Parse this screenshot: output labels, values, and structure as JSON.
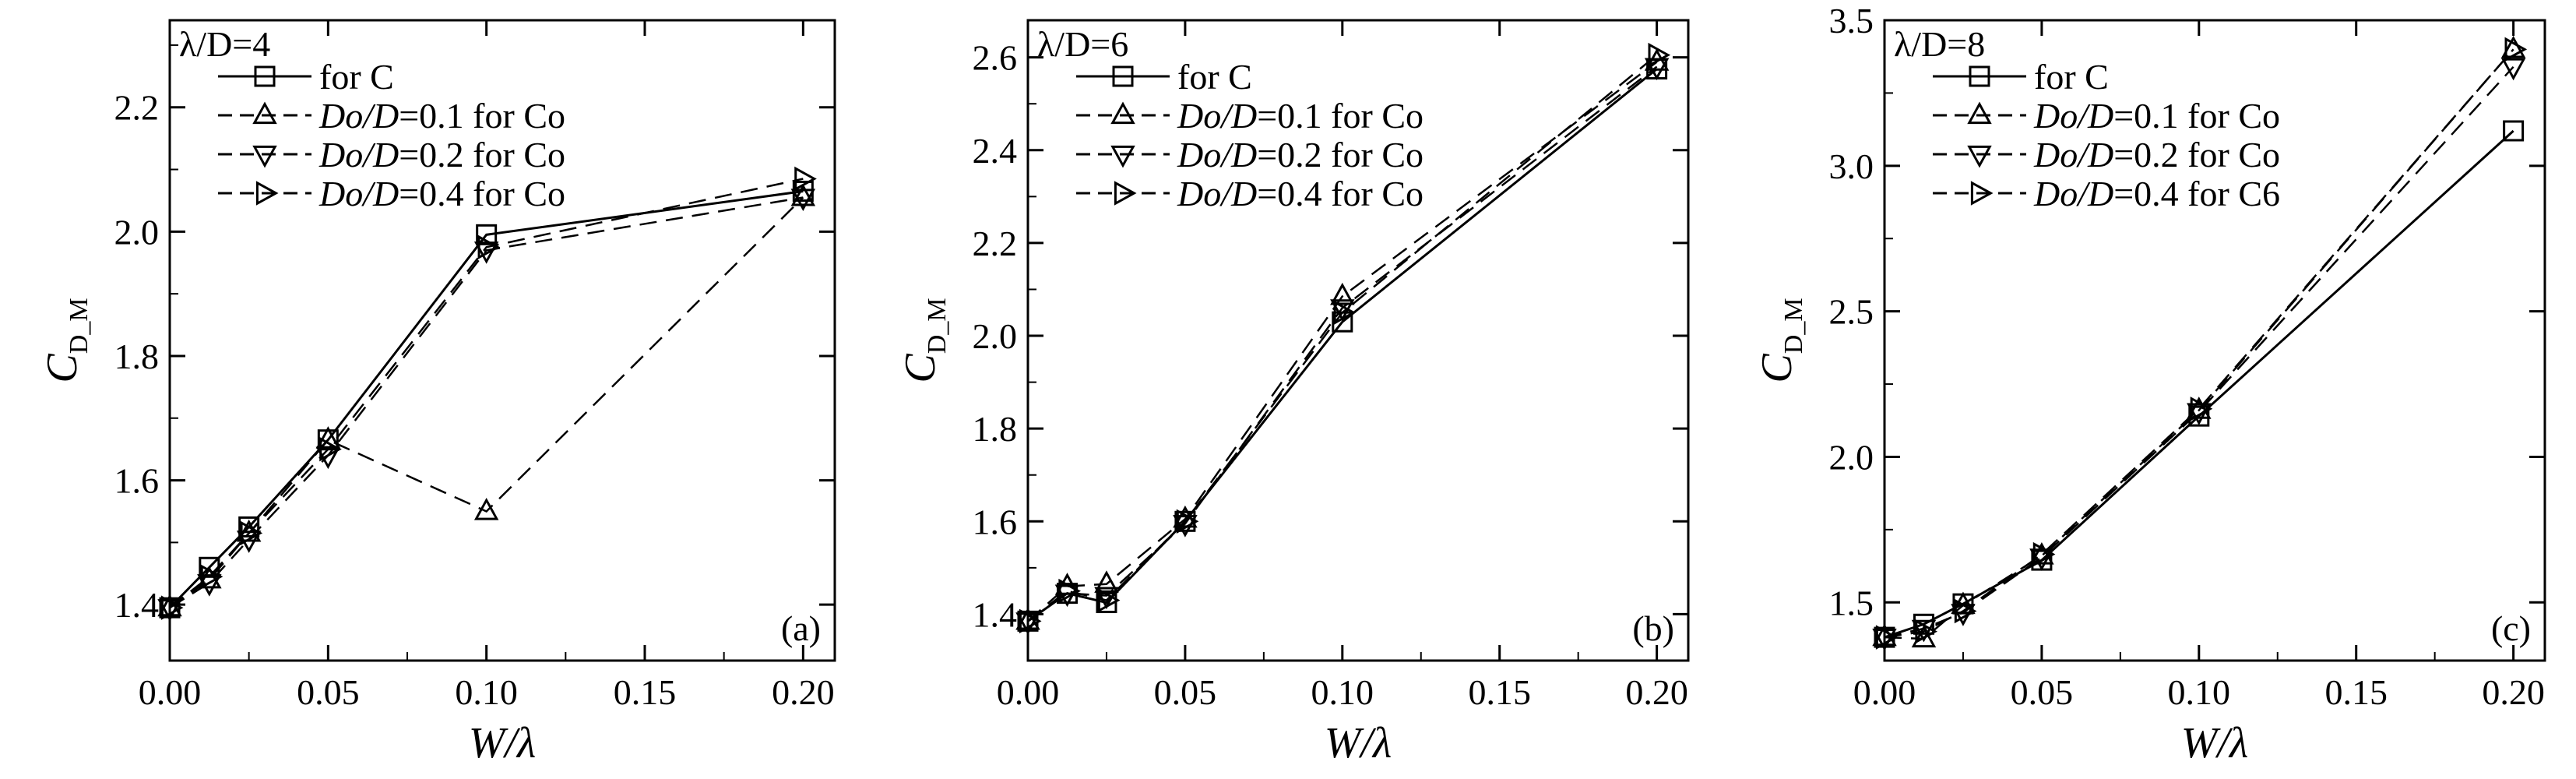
{
  "figure": {
    "x_axis_label": "W/λ",
    "y_axis_label_main": "C",
    "y_axis_label_sub": "D_M",
    "series_styles": [
      {
        "marker": "square",
        "dash": "solid"
      },
      {
        "marker": "triangle-up",
        "dash": "dashed"
      },
      {
        "marker": "triangle-down",
        "dash": "dashed"
      },
      {
        "marker": "triangle-right",
        "dash": "dashed"
      }
    ]
  },
  "chart_data": [
    {
      "type": "line",
      "panel_label": "(a)",
      "legend_title": "λ/D=4",
      "legend_placement": "top-left",
      "grid": false,
      "xlim": [
        0,
        0.21
      ],
      "ylim": [
        1.31,
        2.34
      ],
      "x_ticks": [
        0.0,
        0.05,
        0.1,
        0.15,
        0.2
      ],
      "x_tick_labels": [
        "0.00",
        "0.05",
        "0.10",
        "0.15",
        "0.20"
      ],
      "y_ticks": [
        1.4,
        1.6,
        1.8,
        2.0,
        2.2
      ],
      "y_tick_labels": [
        "1.4",
        "1.6",
        "1.8",
        "2.0",
        "2.2"
      ],
      "x": [
        0,
        0.0125,
        0.025,
        0.05,
        0.1,
        0.2
      ],
      "series": [
        {
          "legend_italic": "",
          "legend_plain": "for C",
          "values": [
            1.395,
            1.46,
            1.525,
            1.665,
            1.995,
            2.065
          ]
        },
        {
          "legend_italic": "Do/D",
          "legend_plain": "=0.1 for Co",
          "values": [
            1.395,
            1.44,
            1.515,
            1.665,
            1.55,
            2.055
          ]
        },
        {
          "legend_italic": "Do/D",
          "legend_plain": "=0.2 for Co",
          "values": [
            1.395,
            1.435,
            1.505,
            1.64,
            1.97,
            2.055
          ]
        },
        {
          "legend_italic": "Do/D",
          "legend_plain": "=0.4 for Co",
          "values": [
            1.395,
            1.445,
            1.515,
            1.65,
            1.975,
            2.085
          ]
        }
      ]
    },
    {
      "type": "line",
      "panel_label": "(b)",
      "legend_title": "λ/D=6",
      "legend_placement": "top-left",
      "grid": false,
      "xlim": [
        0,
        0.21
      ],
      "ylim": [
        1.3,
        2.68
      ],
      "x_ticks": [
        0.0,
        0.05,
        0.1,
        0.15,
        0.2
      ],
      "x_tick_labels": [
        "0.00",
        "0.05",
        "0.10",
        "0.15",
        "0.20"
      ],
      "y_ticks": [
        1.4,
        1.6,
        1.8,
        2.0,
        2.2,
        2.4,
        2.6
      ],
      "y_tick_labels": [
        "1.4",
        "1.6",
        "1.8",
        "2.0",
        "2.2",
        "2.4",
        "2.6"
      ],
      "x": [
        0,
        0.0125,
        0.025,
        0.05,
        0.1,
        0.2
      ],
      "series": [
        {
          "legend_italic": "",
          "legend_plain": "for C",
          "values": [
            1.385,
            1.445,
            1.425,
            1.6,
            2.03,
            2.575
          ]
        },
        {
          "legend_italic": "Do/D",
          "legend_plain": "=0.1 for Co",
          "values": [
            1.385,
            1.46,
            1.465,
            1.605,
            2.085,
            2.59
          ]
        },
        {
          "legend_italic": "Do/D",
          "legend_plain": "=0.2 for Co",
          "values": [
            1.385,
            1.445,
            1.44,
            1.595,
            2.06,
            2.58
          ]
        },
        {
          "legend_italic": "Do/D",
          "legend_plain": "=0.4 for Co",
          "values": [
            1.385,
            1.45,
            1.43,
            1.6,
            2.05,
            2.605
          ]
        }
      ]
    },
    {
      "type": "line",
      "panel_label": "(c)",
      "legend_title": "λ/D=8",
      "legend_placement": "top-left",
      "grid": false,
      "xlim": [
        0,
        0.21
      ],
      "ylim": [
        1.3,
        3.5
      ],
      "x_ticks": [
        0.0,
        0.05,
        0.1,
        0.15,
        0.2
      ],
      "x_tick_labels": [
        "0.00",
        "0.05",
        "0.10",
        "0.15",
        "0.20"
      ],
      "y_ticks": [
        1.5,
        2.0,
        2.5,
        3.0,
        3.5
      ],
      "y_tick_labels": [
        "1.5",
        "2.0",
        "2.5",
        "3.0",
        "3.5"
      ],
      "x": [
        0,
        0.0125,
        0.025,
        0.05,
        0.1,
        0.2
      ],
      "series": [
        {
          "legend_italic": "",
          "legend_plain": "for C",
          "values": [
            1.38,
            1.425,
            1.495,
            1.645,
            2.14,
            3.12
          ]
        },
        {
          "legend_italic": "Do/D",
          "legend_plain": "=0.1 for Co",
          "values": [
            1.38,
            1.375,
            1.49,
            1.66,
            2.16,
            3.4
          ]
        },
        {
          "legend_italic": "Do/D",
          "legend_plain": "=0.2 for Co",
          "values": [
            1.38,
            1.41,
            1.465,
            1.655,
            2.155,
            3.34
          ]
        },
        {
          "legend_italic": "Do/D",
          "legend_plain": "=0.4 for C6",
          "values": [
            1.38,
            1.4,
            1.47,
            1.665,
            2.165,
            3.4
          ]
        }
      ]
    }
  ]
}
